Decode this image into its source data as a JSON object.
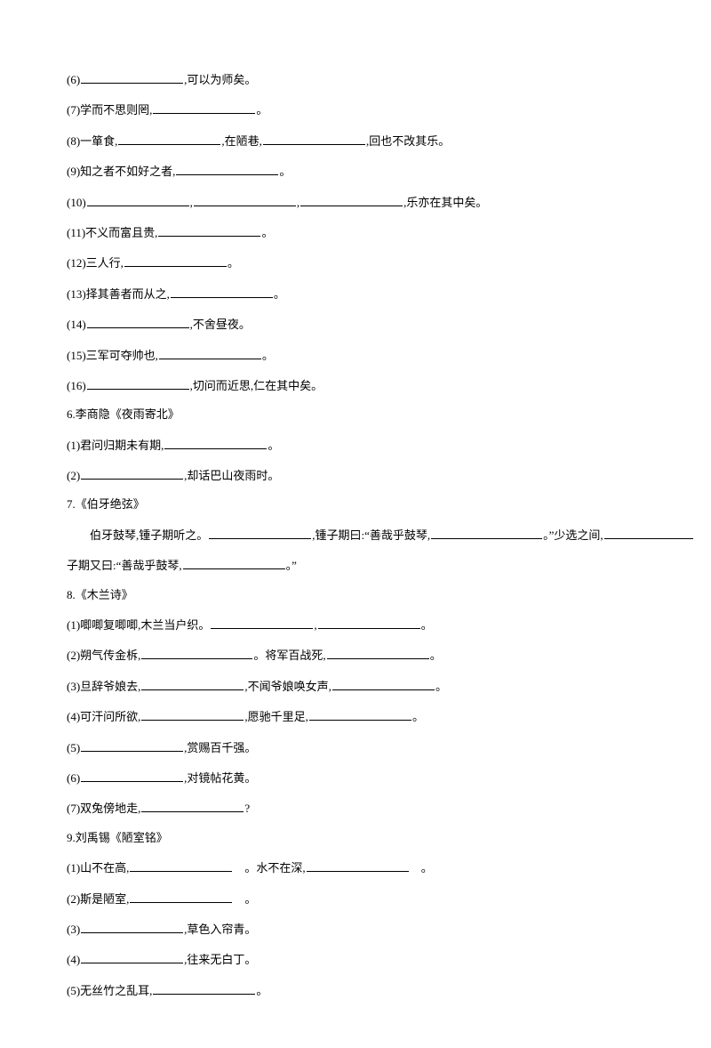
{
  "lines": [
    {
      "pre": "(6)",
      "blanks": [
        {
          "cls": "blank-m"
        }
      ],
      "post": ",可以为师矣。"
    },
    {
      "pre": "(7)学而不思则罔,",
      "blanks": [
        {
          "cls": "blank-m"
        }
      ],
      "post": "。"
    },
    {
      "pre": "(8)一箪食,",
      "blanks": [
        {
          "cls": "blank-m"
        }
      ],
      "mid1": ",在陋巷,",
      "blanks2": [
        {
          "cls": "blank-m"
        }
      ],
      "post": ",回也不改其乐。"
    },
    {
      "pre": "(9)知之者不如好之者,",
      "blanks": [
        {
          "cls": "blank-m"
        }
      ],
      "post": "。"
    },
    {
      "pre": "(10)",
      "blanks": [
        {
          "cls": "blank-m"
        }
      ],
      "mid1": ",",
      "blanks2": [
        {
          "cls": "blank-m"
        }
      ],
      "mid2": ",",
      "blanks3": [
        {
          "cls": "blank-m"
        }
      ],
      "post": ",乐亦在其中矣。"
    },
    {
      "pre": "(11)不义而富且贵,",
      "blanks": [
        {
          "cls": "blank-m"
        }
      ],
      "post": "。"
    },
    {
      "pre": "(12)三人行,",
      "blanks": [
        {
          "cls": "blank-m"
        }
      ],
      "post": "。"
    },
    {
      "pre": "(13)择其善者而从之,",
      "blanks": [
        {
          "cls": "blank-m"
        }
      ],
      "post": "。"
    },
    {
      "pre": "(14)",
      "blanks": [
        {
          "cls": "blank-m"
        }
      ],
      "post": ",不舍昼夜。"
    },
    {
      "pre": "(15)三军可夺帅也,",
      "blanks": [
        {
          "cls": "blank-m"
        }
      ],
      "post": "。"
    },
    {
      "pre": "(16)",
      "blanks": [
        {
          "cls": "blank-m"
        }
      ],
      "post": ",切问而近思,仁在其中矣。"
    },
    {
      "pre": "6.李商隐《夜雨寄北》",
      "type": "heading"
    },
    {
      "pre": "(1)君问归期未有期,",
      "blanks": [
        {
          "cls": "blank-m"
        }
      ],
      "post": "。"
    },
    {
      "pre": "(2)",
      "blanks": [
        {
          "cls": "blank-m"
        }
      ],
      "post": ",却话巴山夜雨时。"
    },
    {
      "pre": "7.《伯牙绝弦》",
      "type": "heading"
    },
    {
      "pre": "　　伯牙鼓琴,锺子期听之。",
      "blanks": [
        {
          "cls": "blank-m"
        }
      ],
      "mid1": ",锺子期曰:“善哉乎鼓琴,",
      "blanks2": [
        {
          "cls": "blank-l"
        }
      ],
      "post": "。”少选之间,",
      "blanks3": [
        {
          "cls": "blank-s"
        }
      ],
      "type": "boya1"
    },
    {
      "pre": "子期又曰:“善哉乎鼓琴,",
      "blanks": [
        {
          "cls": "blank-m"
        }
      ],
      "post": "。”"
    },
    {
      "pre": "8.《木兰诗》",
      "type": "heading"
    },
    {
      "pre": "(1)唧唧复唧唧,木兰当户织。",
      "blanks": [
        {
          "cls": "blank-m"
        }
      ],
      "mid1": ",",
      "blanks2": [
        {
          "cls": "blank-m"
        }
      ],
      "post": "。"
    },
    {
      "pre": "(2)朔气传金柝,",
      "blanks": [
        {
          "cls": "blank-l"
        }
      ],
      "mid1": "。将军百战死,",
      "blanks2": [
        {
          "cls": "blank-m"
        }
      ],
      "post": "。"
    },
    {
      "pre": "(3)旦辞爷娘去,",
      "blanks": [
        {
          "cls": "blank-m"
        }
      ],
      "mid1": ",不闻爷娘唤女声,",
      "blanks2": [
        {
          "cls": "blank-m"
        }
      ],
      "post": "。"
    },
    {
      "pre": "(4)可汗问所欲,",
      "blanks": [
        {
          "cls": "blank-m"
        }
      ],
      "mid1": ",愿驰千里足,",
      "blanks2": [
        {
          "cls": "blank-m"
        }
      ],
      "post": "。"
    },
    {
      "pre": "(5)",
      "blanks": [
        {
          "cls": "blank-m"
        }
      ],
      "post": ",赏赐百千强。"
    },
    {
      "pre": "(6)",
      "blanks": [
        {
          "cls": "blank-m"
        }
      ],
      "post": ",对镜帖花黄。"
    },
    {
      "pre": "(7)双兔傍地走,",
      "blanks": [
        {
          "cls": "blank-m"
        }
      ],
      "post": "?"
    },
    {
      "pre": "9.刘禹锡《陋室铭》",
      "type": "heading"
    },
    {
      "pre": "(1)山不在高,",
      "blanks": [
        {
          "cls": "blank-m"
        }
      ],
      "mid1": " 。水不在深,",
      "blanks2": [
        {
          "cls": "blank-m"
        }
      ],
      "post": " 。"
    },
    {
      "pre": "(2)斯是陋室,",
      "blanks": [
        {
          "cls": "blank-m"
        }
      ],
      "post": " 。"
    },
    {
      "pre": "(3)",
      "blanks": [
        {
          "cls": "blank-m"
        }
      ],
      "post": ",草色入帘青。"
    },
    {
      "pre": "(4)",
      "blanks": [
        {
          "cls": "blank-m"
        }
      ],
      "post": ",往来无白丁。"
    },
    {
      "pre": "(5)无丝竹之乱耳,",
      "blanks": [
        {
          "cls": "blank-m"
        }
      ],
      "post": "。"
    }
  ]
}
